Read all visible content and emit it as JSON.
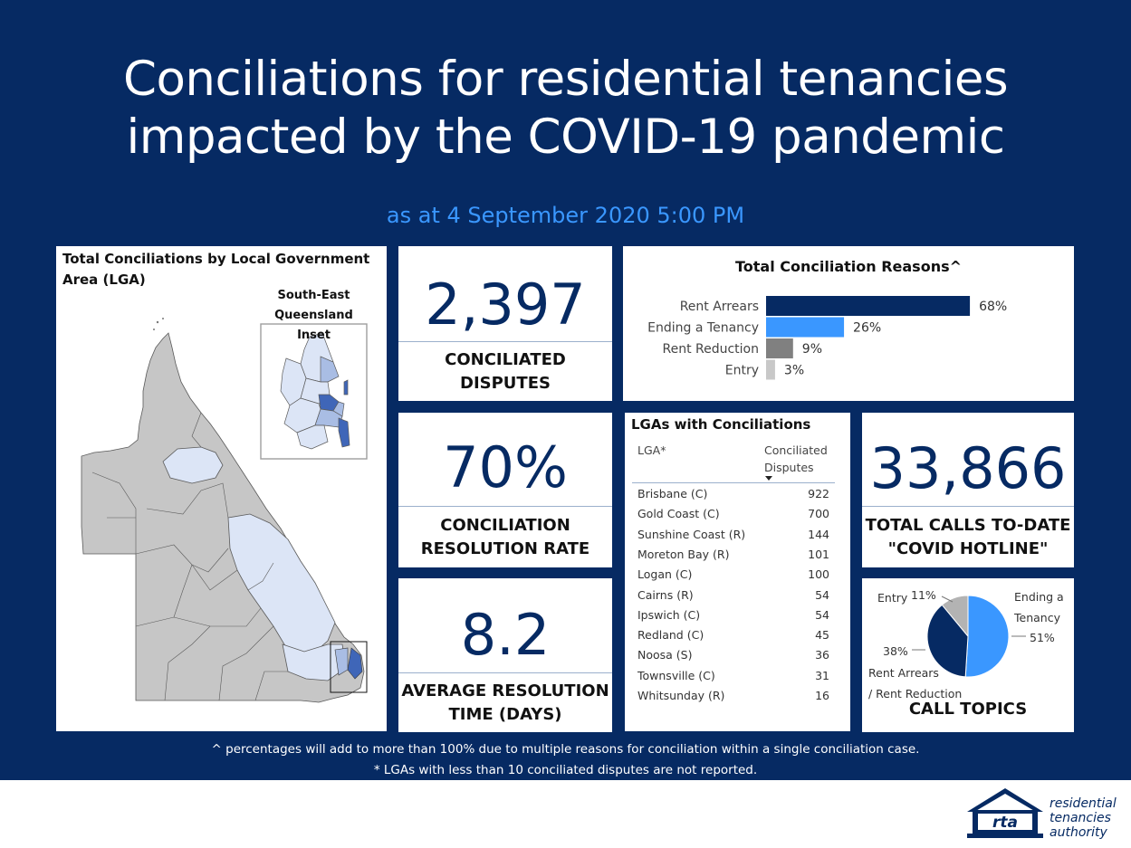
{
  "header": {
    "title_line1": "Conciliations for residential tenancies",
    "title_line2": "impacted by the COVID-19 pandemic",
    "subtitle": "as at 4 September 2020 5:00 PM"
  },
  "map": {
    "title_line1": "Total Conciliations by Local Government",
    "title_line2": "Area (LGA)",
    "inset_line1": "South-East",
    "inset_line2": "Queensland Inset",
    "colors": {
      "none": "#c6c6c6",
      "low": "#dce5f6",
      "mid": "#a9bde4",
      "high": "#3f66b8"
    }
  },
  "kpis": {
    "disputes": {
      "value": "2,397",
      "label_line1": "CONCILIATED",
      "label_line2": "DISPUTES"
    },
    "rate": {
      "value": "70%",
      "label_line1": "CONCILIATION",
      "label_line2": "RESOLUTION RATE"
    },
    "time": {
      "value": "8.2",
      "label_line1": "AVERAGE RESOLUTION",
      "label_line2": "TIME (DAYS)"
    },
    "calls": {
      "value": "33,866",
      "label_line1": "TOTAL CALLS TO-DATE",
      "label_line2": "\"COVID HOTLINE\""
    }
  },
  "lga_table": {
    "title": "LGAs with Conciliations",
    "col_lga": "LGA*",
    "col_disputes_line1": "Conciliated",
    "col_disputes_line2": "Disputes",
    "sort_icon": "sort-desc-icon",
    "rows": [
      {
        "name": "Brisbane (C)",
        "value": "922"
      },
      {
        "name": "Gold Coast (C)",
        "value": "700"
      },
      {
        "name": "Sunshine Coast (R)",
        "value": "144"
      },
      {
        "name": "Moreton Bay (R)",
        "value": "101"
      },
      {
        "name": "Logan (C)",
        "value": "100"
      },
      {
        "name": "Cairns (R)",
        "value": "54"
      },
      {
        "name": "Ipswich (C)",
        "value": "54"
      },
      {
        "name": "Redland (C)",
        "value": "45"
      },
      {
        "name": "Noosa (S)",
        "value": "36"
      },
      {
        "name": "Townsville (C)",
        "value": "31"
      },
      {
        "name": "Whitsunday (R)",
        "value": "16"
      }
    ]
  },
  "chart_data": [
    {
      "type": "bar",
      "orientation": "horizontal",
      "title": "Total Conciliation Reasons^",
      "categories": [
        "Rent Arrears",
        "Ending a Tenancy",
        "Rent Reduction",
        "Entry"
      ],
      "values": [
        68,
        26,
        9,
        3
      ],
      "value_labels": [
        "68%",
        "26%",
        "9%",
        "3%"
      ],
      "colors": [
        "#062a63",
        "#3a97ff",
        "#808080",
        "#c8c8c8"
      ],
      "xlim": [
        0,
        100
      ]
    },
    {
      "type": "pie",
      "title": "CALL TOPICS",
      "slices": [
        {
          "label_line1": "Ending a",
          "label_line2": "Tenancy",
          "value": 51,
          "value_label": "51%",
          "color": "#3a97ff"
        },
        {
          "label_line1": "Rent Arrears",
          "label_line2": "/ Rent Reduction",
          "value": 38,
          "value_label": "38%",
          "color": "#062a63"
        },
        {
          "label_line1": "Entry",
          "label_line2": "",
          "value": 11,
          "value_label": "11%",
          "color": "#b3b3b3"
        }
      ]
    }
  ],
  "footer": {
    "note1": "^ percentages will add to more than 100% due to multiple reasons for conciliation within a single conciliation case.",
    "note2": "* LGAs with less than 10 conciliated disputes are not reported."
  },
  "logo": {
    "mark": "rta",
    "line1": "residential",
    "line2": "tenancies",
    "line3": "authority"
  }
}
